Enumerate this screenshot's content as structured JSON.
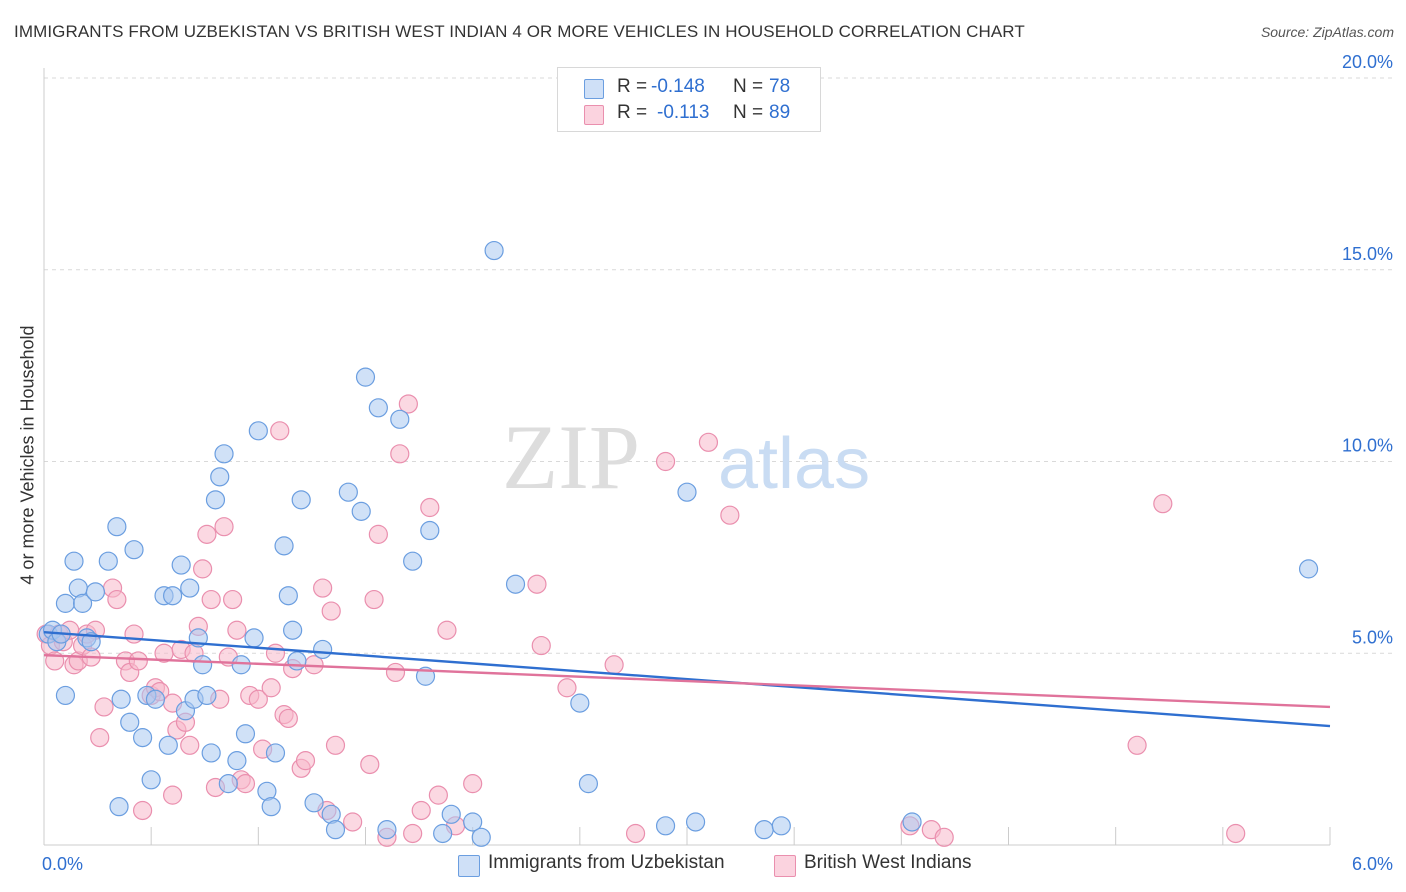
{
  "title": "IMMIGRANTS FROM UZBEKISTAN VS BRITISH WEST INDIAN 4 OR MORE VEHICLES IN HOUSEHOLD CORRELATION CHART",
  "source": "Source: ZipAtlas.com",
  "watermark": {
    "part1": "ZIP",
    "part2": "atlas"
  },
  "colors": {
    "blue_fill": "#a9c8f0",
    "blue_stroke": "#6b9ee0",
    "blue_line": "#2f6fd0",
    "pink_fill": "#f7b8cb",
    "pink_stroke": "#ea8fae",
    "pink_line": "#e0739b",
    "grid": "#d9d9d9",
    "axis_tick_text": "#2f6fd0"
  },
  "legend": {
    "rows": [
      {
        "r_label": "R =",
        "r_value": "-0.148",
        "n_label": "N =",
        "n_value": "78",
        "color": "#a9c8f0"
      },
      {
        "r_label": "R =",
        "r_value": "-0.113",
        "n_label": "N =",
        "n_value": "89",
        "color": "#f7b8cb"
      }
    ]
  },
  "bottom_legend": [
    {
      "label": "Immigrants from Uzbekistan",
      "color": "#a9c8f0"
    },
    {
      "label": "British West Indians",
      "color": "#f7b8cb"
    }
  ],
  "chart_data": {
    "type": "scatter",
    "title": "IMMIGRANTS FROM UZBEKISTAN VS BRITISH WEST INDIAN 4 OR MORE VEHICLES IN HOUSEHOLD CORRELATION CHART",
    "xlabel": "",
    "ylabel": "4 or more Vehicles in Household",
    "xlim": [
      0,
      6
    ],
    "ylim": [
      0,
      20
    ],
    "x_tick_labels": [
      "0.0%",
      "6.0%"
    ],
    "y_ticks": [
      5,
      10,
      15,
      20
    ],
    "y_tick_labels": [
      "5.0%",
      "10.0%",
      "15.0%",
      "20.0%"
    ],
    "grid": true,
    "series": [
      {
        "name": "Immigrants from Uzbekistan",
        "r": -0.148,
        "n": 78,
        "trend": {
          "x": [
            0,
            6
          ],
          "y": [
            5.55,
            3.1
          ]
        },
        "points": [
          [
            0.02,
            5.5
          ],
          [
            0.04,
            5.6
          ],
          [
            0.06,
            5.3
          ],
          [
            0.1,
            6.3
          ],
          [
            0.08,
            5.5
          ],
          [
            0.14,
            7.4
          ],
          [
            0.16,
            6.7
          ],
          [
            0.18,
            6.3
          ],
          [
            0.2,
            5.4
          ],
          [
            0.22,
            5.3
          ],
          [
            0.24,
            6.6
          ],
          [
            0.1,
            3.9
          ],
          [
            0.42,
            7.7
          ],
          [
            0.3,
            7.4
          ],
          [
            0.34,
            8.3
          ],
          [
            0.36,
            3.8
          ],
          [
            0.4,
            3.2
          ],
          [
            0.46,
            2.8
          ],
          [
            0.5,
            1.7
          ],
          [
            0.48,
            3.9
          ],
          [
            0.52,
            3.8
          ],
          [
            0.56,
            6.5
          ],
          [
            0.6,
            6.5
          ],
          [
            0.58,
            2.6
          ],
          [
            0.64,
            7.3
          ],
          [
            0.66,
            3.5
          ],
          [
            0.68,
            6.7
          ],
          [
            0.72,
            5.4
          ],
          [
            0.7,
            3.8
          ],
          [
            0.74,
            4.7
          ],
          [
            0.76,
            3.9
          ],
          [
            0.78,
            2.4
          ],
          [
            0.82,
            9.6
          ],
          [
            0.84,
            10.2
          ],
          [
            0.8,
            9.0
          ],
          [
            0.86,
            1.6
          ],
          [
            0.9,
            2.2
          ],
          [
            0.92,
            4.7
          ],
          [
            0.94,
            2.9
          ],
          [
            0.98,
            5.4
          ],
          [
            1.0,
            10.8
          ],
          [
            1.04,
            1.4
          ],
          [
            1.06,
            1.0
          ],
          [
            1.08,
            2.4
          ],
          [
            1.12,
            7.8
          ],
          [
            1.14,
            6.5
          ],
          [
            1.16,
            5.6
          ],
          [
            1.18,
            4.8
          ],
          [
            1.2,
            9.0
          ],
          [
            1.26,
            1.1
          ],
          [
            1.3,
            5.1
          ],
          [
            1.34,
            0.8
          ],
          [
            1.36,
            0.4
          ],
          [
            1.42,
            9.2
          ],
          [
            1.48,
            8.7
          ],
          [
            1.5,
            12.2
          ],
          [
            1.56,
            11.4
          ],
          [
            1.6,
            0.4
          ],
          [
            1.66,
            11.1
          ],
          [
            1.72,
            7.4
          ],
          [
            1.78,
            4.4
          ],
          [
            1.8,
            8.2
          ],
          [
            1.86,
            0.3
          ],
          [
            1.9,
            0.8
          ],
          [
            2.0,
            0.6
          ],
          [
            2.04,
            0.2
          ],
          [
            2.1,
            15.5
          ],
          [
            2.2,
            6.8
          ],
          [
            2.5,
            3.7
          ],
          [
            2.54,
            1.6
          ],
          [
            2.9,
            0.5
          ],
          [
            3.0,
            9.2
          ],
          [
            3.04,
            0.6
          ],
          [
            3.36,
            0.4
          ],
          [
            3.44,
            0.5
          ],
          [
            4.05,
            0.6
          ],
          [
            5.9,
            7.2
          ],
          [
            0.35,
            1.0
          ]
        ]
      },
      {
        "name": "British West Indians",
        "r": -0.113,
        "n": 89,
        "trend": {
          "x": [
            0,
            6
          ],
          "y": [
            4.95,
            3.6
          ]
        },
        "points": [
          [
            0.01,
            5.5
          ],
          [
            0.03,
            5.2
          ],
          [
            0.05,
            4.8
          ],
          [
            0.07,
            5.5
          ],
          [
            0.09,
            5.3
          ],
          [
            0.12,
            5.6
          ],
          [
            0.14,
            4.7
          ],
          [
            0.16,
            4.8
          ],
          [
            0.18,
            5.2
          ],
          [
            0.2,
            5.5
          ],
          [
            0.22,
            4.9
          ],
          [
            0.24,
            5.6
          ],
          [
            0.26,
            2.8
          ],
          [
            0.28,
            3.6
          ],
          [
            0.32,
            6.7
          ],
          [
            0.34,
            6.4
          ],
          [
            0.38,
            4.8
          ],
          [
            0.42,
            5.5
          ],
          [
            0.4,
            4.5
          ],
          [
            0.44,
            4.8
          ],
          [
            0.46,
            0.9
          ],
          [
            0.5,
            3.9
          ],
          [
            0.52,
            4.1
          ],
          [
            0.54,
            4.0
          ],
          [
            0.56,
            5.0
          ],
          [
            0.6,
            3.7
          ],
          [
            0.62,
            3.0
          ],
          [
            0.64,
            5.1
          ],
          [
            0.66,
            3.2
          ],
          [
            0.68,
            2.6
          ],
          [
            0.7,
            5.0
          ],
          [
            0.72,
            5.7
          ],
          [
            0.74,
            7.2
          ],
          [
            0.76,
            8.1
          ],
          [
            0.78,
            6.4
          ],
          [
            0.8,
            1.5
          ],
          [
            0.82,
            3.8
          ],
          [
            0.84,
            8.3
          ],
          [
            0.86,
            4.9
          ],
          [
            0.88,
            6.4
          ],
          [
            0.9,
            5.6
          ],
          [
            0.92,
            1.7
          ],
          [
            0.94,
            1.6
          ],
          [
            0.96,
            3.9
          ],
          [
            1.0,
            3.8
          ],
          [
            1.02,
            2.5
          ],
          [
            1.06,
            4.1
          ],
          [
            1.08,
            5.0
          ],
          [
            1.1,
            10.8
          ],
          [
            1.12,
            3.4
          ],
          [
            1.14,
            3.3
          ],
          [
            1.16,
            4.6
          ],
          [
            1.2,
            2.0
          ],
          [
            1.22,
            2.2
          ],
          [
            1.26,
            4.7
          ],
          [
            1.3,
            6.7
          ],
          [
            1.32,
            0.9
          ],
          [
            1.34,
            6.1
          ],
          [
            1.36,
            2.6
          ],
          [
            1.44,
            0.6
          ],
          [
            1.52,
            2.1
          ],
          [
            1.54,
            6.4
          ],
          [
            1.56,
            8.1
          ],
          [
            1.6,
            0.2
          ],
          [
            1.64,
            4.5
          ],
          [
            1.66,
            10.2
          ],
          [
            1.7,
            11.5
          ],
          [
            1.72,
            0.3
          ],
          [
            1.76,
            0.9
          ],
          [
            1.8,
            8.8
          ],
          [
            1.84,
            1.3
          ],
          [
            1.88,
            5.6
          ],
          [
            1.92,
            0.5
          ],
          [
            2.0,
            1.6
          ],
          [
            2.3,
            6.8
          ],
          [
            2.32,
            5.2
          ],
          [
            2.44,
            4.1
          ],
          [
            2.66,
            4.7
          ],
          [
            2.76,
            0.3
          ],
          [
            2.9,
            10.0
          ],
          [
            3.1,
            10.5
          ],
          [
            3.2,
            8.6
          ],
          [
            4.04,
            0.5
          ],
          [
            4.14,
            0.4
          ],
          [
            4.2,
            0.2
          ],
          [
            5.1,
            2.6
          ],
          [
            5.22,
            8.9
          ],
          [
            5.56,
            0.3
          ],
          [
            0.6,
            1.3
          ]
        ]
      }
    ]
  }
}
